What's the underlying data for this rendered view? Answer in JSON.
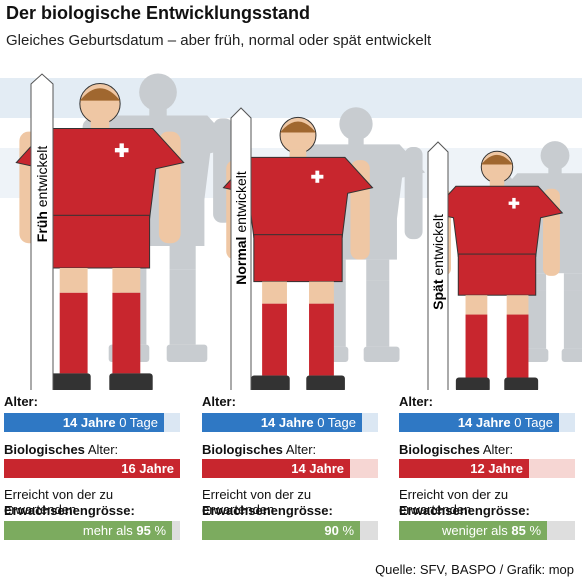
{
  "header": {
    "title": "Der biologische Entwicklungsstand",
    "subtitle": "Gleiches Geburtsdatum – aber früh, normal oder spät entwickelt"
  },
  "groups": [
    {
      "label_bold": "Früh",
      "label_rest": "entwickelt",
      "age_label": "Alter:",
      "age_bold": "14 Jahre",
      "age_rest": "0 Tage",
      "bio_label_bold": "Biologisches",
      "bio_label_rest": "Alter:",
      "bio_age": "16 Jahre",
      "reach_line1": "Erreicht von der zu erwartenden",
      "reach_line2": "Erwachsenengrösse:",
      "reach_pre": "mehr als",
      "reach_bold": "95",
      "reach_post": "%"
    },
    {
      "label_bold": "Normal",
      "label_rest": "entwickelt",
      "age_label": "Alter:",
      "age_bold": "14 Jahre",
      "age_rest": "0 Tage",
      "bio_label_bold": "Biologisches",
      "bio_label_rest": "Alter:",
      "bio_age": "14 Jahre",
      "reach_line1": "Erreicht von der zu erwartenden",
      "reach_line2": "Erwachsenengrösse:",
      "reach_bold": "90",
      "reach_post": "%"
    },
    {
      "label_bold": "Spät",
      "label_rest": "entwickelt",
      "age_label": "Alter:",
      "age_bold": "14 Jahre",
      "age_rest": "0 Tage",
      "bio_label_bold": "Biologisches",
      "bio_label_rest": "Alter:",
      "bio_age": "12 Jahre",
      "reach_line1": "Erreicht von der zu erwartenden",
      "reach_line2": "Erwachsenengrösse:",
      "reach_pre": "weniger als",
      "reach_bold": "85",
      "reach_post": "%"
    }
  ],
  "footer": "Quelle: SFV, BASPO / Grafik: mop"
}
